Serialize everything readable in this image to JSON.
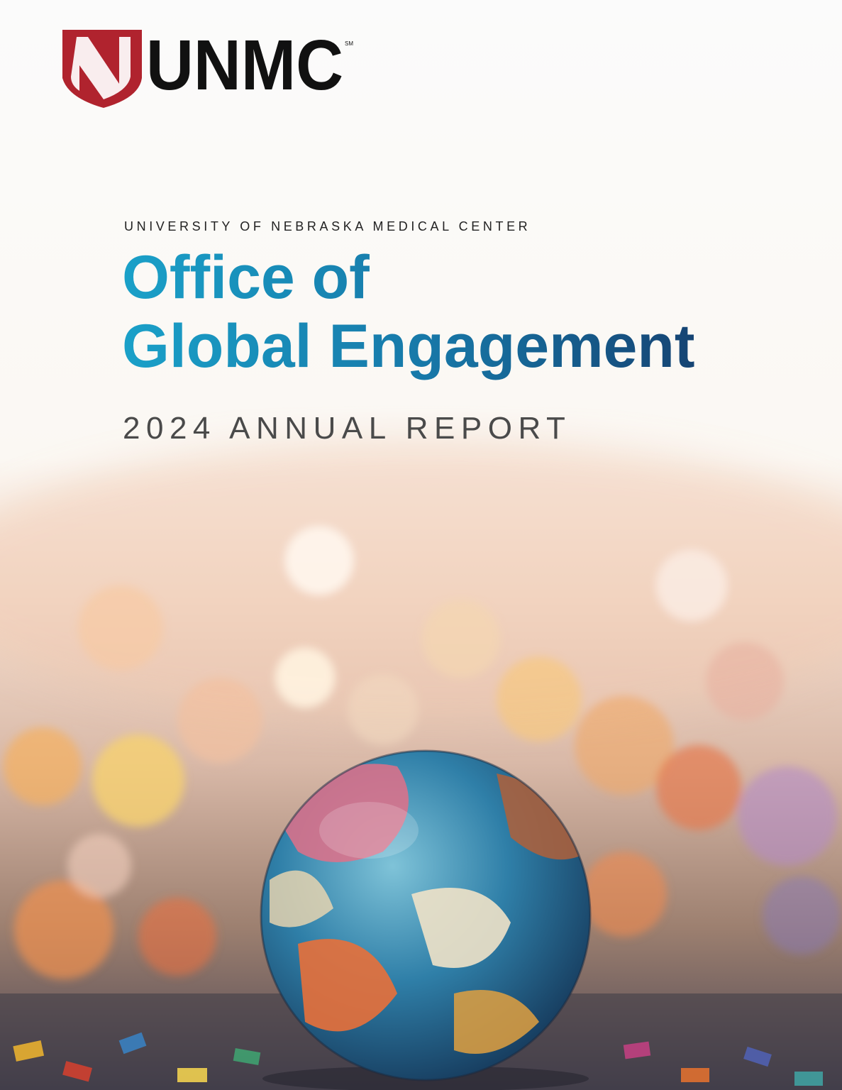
{
  "logo": {
    "wordmark": "UNMC",
    "service_mark": "SM"
  },
  "header": {
    "institution": "UNIVERSITY OF NEBRASKA MEDICAL CENTER",
    "title_line_1": "Office of",
    "title_line_2": "Global Engagement",
    "subtitle": "2024 ANNUAL REPORT"
  }
}
